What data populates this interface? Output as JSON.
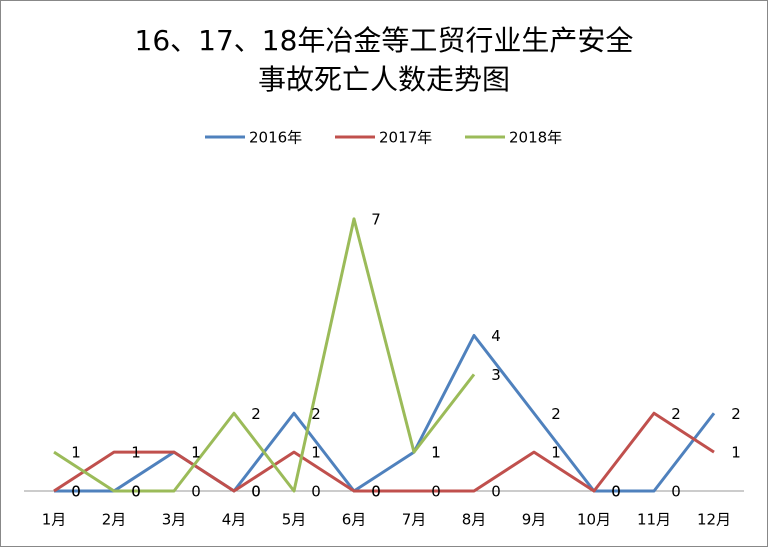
{
  "chart_data": {
    "type": "line",
    "title": [
      "16、17、18年冶金等工贸行业生产安全",
      "事故死亡人数走势图"
    ],
    "categories": [
      "1月",
      "2月",
      "3月",
      "4月",
      "5月",
      "6月",
      "7月",
      "8月",
      "9月",
      "10月",
      "11月",
      "12月"
    ],
    "series": [
      {
        "name": "2016年",
        "color": "#4f81bd",
        "values": [
          0,
          0,
          1,
          0,
          2,
          0,
          1,
          4,
          2,
          0,
          0,
          2
        ]
      },
      {
        "name": "2017年",
        "color": "#c0504d",
        "values": [
          0,
          1,
          1,
          0,
          1,
          0,
          0,
          0,
          1,
          0,
          2,
          1
        ]
      },
      {
        "name": "2018年",
        "color": "#9bbb59",
        "values": [
          1,
          0,
          0,
          2,
          0,
          7,
          1,
          3,
          null,
          null,
          null,
          null
        ]
      }
    ],
    "ylim": [
      0,
      8
    ],
    "grid": false,
    "legend": "top",
    "data_labels": true
  }
}
